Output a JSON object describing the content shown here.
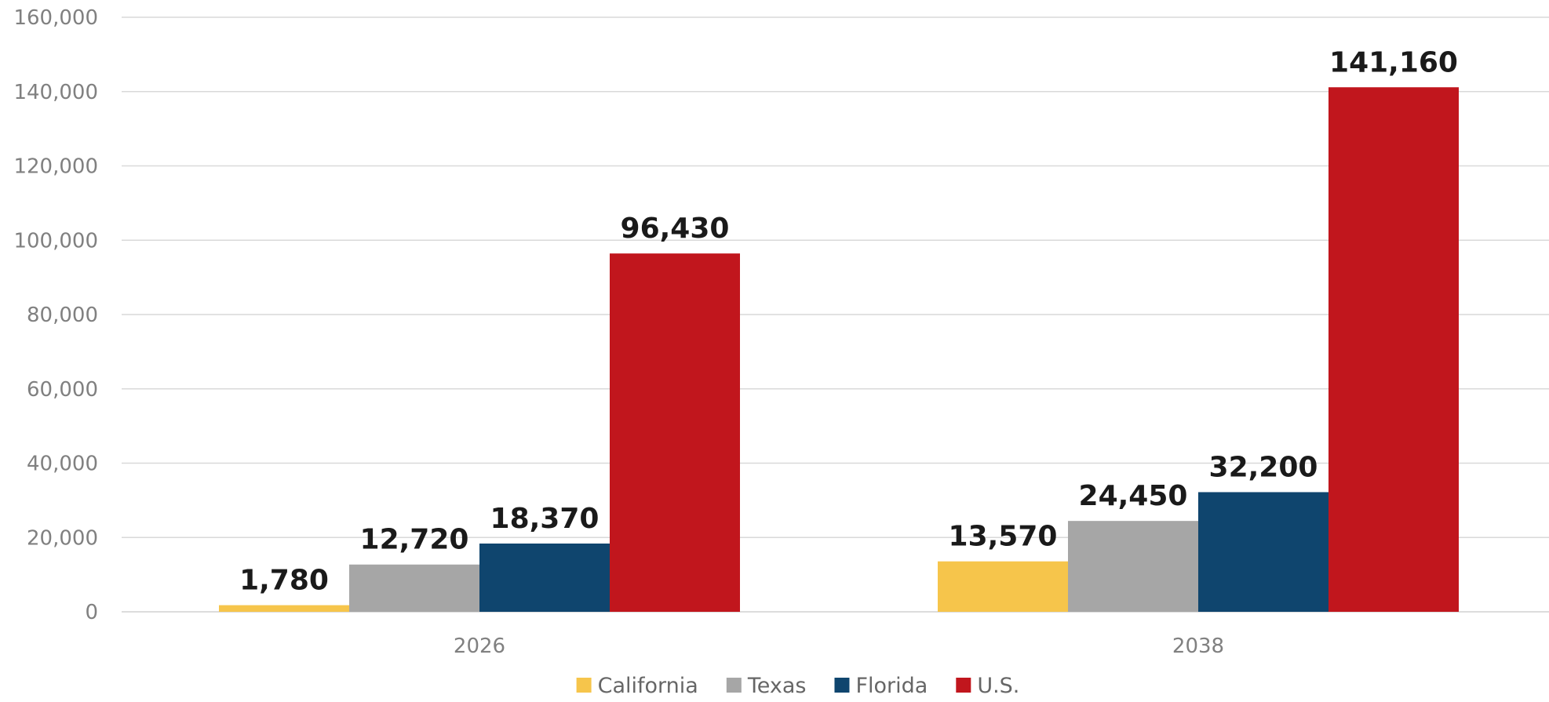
{
  "chart_data": {
    "type": "bar",
    "categories": [
      "2026",
      "2038"
    ],
    "series": [
      {
        "name": "California",
        "color": "#F6C54B",
        "values": [
          1780,
          13570
        ],
        "labels": [
          "1,780",
          "13,570"
        ]
      },
      {
        "name": "Texas",
        "color": "#A6A6A6",
        "values": [
          12720,
          24450
        ],
        "labels": [
          "12,720",
          "24,450"
        ]
      },
      {
        "name": "Florida",
        "color": "#0F456E",
        "values": [
          18370,
          32200
        ],
        "labels": [
          "18,370",
          "32,200"
        ]
      },
      {
        "name": "U.S.",
        "color": "#C1161D",
        "values": [
          96430,
          141160
        ],
        "labels": [
          "96,430",
          "141,160"
        ]
      }
    ],
    "yticks": [
      0,
      20000,
      40000,
      60000,
      80000,
      100000,
      120000,
      140000,
      160000
    ],
    "ytick_labels": [
      "0",
      "20,000",
      "40,000",
      "60,000",
      "80,000",
      "100,000",
      "120,000",
      "140,000",
      "160,000"
    ],
    "ylim": [
      0,
      160000
    ],
    "grid": true,
    "legend_position": "bottom"
  }
}
